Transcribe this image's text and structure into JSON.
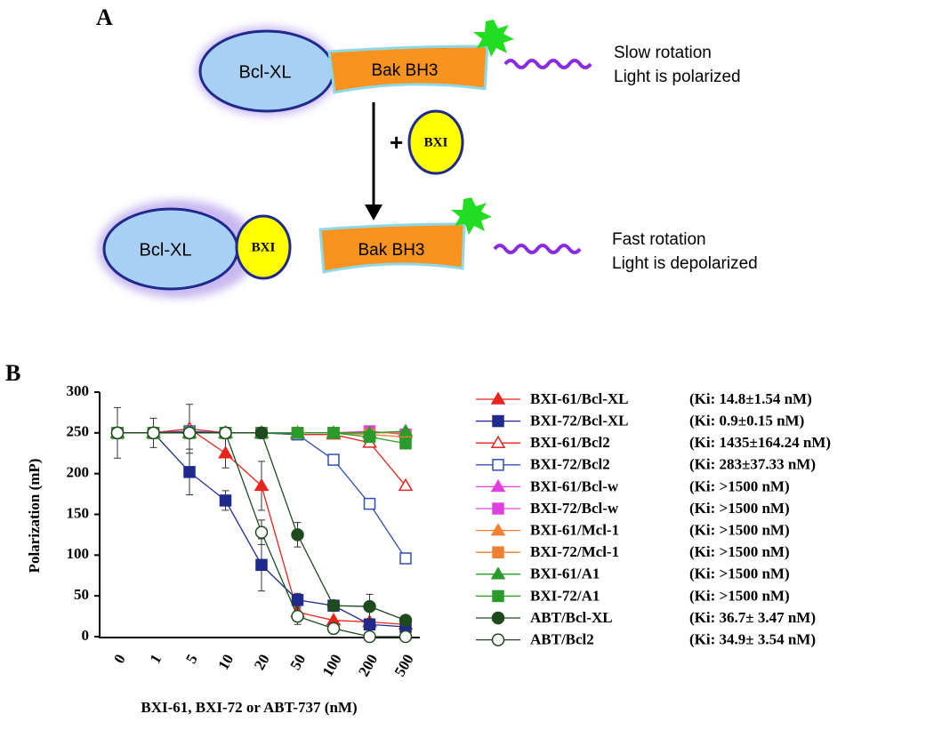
{
  "panel_a": {
    "label": "A",
    "top": {
      "protein": "Bcl-XL",
      "peptide": "Bak BH3",
      "rotation": "Slow rotation",
      "light": "Light is polarized"
    },
    "plus": "+",
    "inhibitor": "BXI",
    "bottom": {
      "protein": "Bcl-XL",
      "inhibitor": "BXI",
      "peptide": "Bak BH3",
      "rotation": "Fast rotation",
      "light": "Light is depolarized"
    }
  },
  "chart_data": {
    "type": "line",
    "panel_label": "B",
    "y_label": "Polarization (mP)",
    "x_label": "BXI-61, BXI-72 or ABT-737 (nM)",
    "categories": [
      "0",
      "1",
      "5",
      "10",
      "20",
      "50",
      "100",
      "200",
      "500"
    ],
    "ylim": [
      0,
      300
    ],
    "yticks": [
      0,
      50,
      100,
      150,
      200,
      250,
      300
    ],
    "series": [
      {
        "name": "BXI-61/Bcl-XL",
        "note": "(Ki: 14.8±1.54 nM)",
        "color": "#e8241c",
        "marker": "triangle",
        "filled": true,
        "values": [
          250,
          250,
          255,
          225,
          185,
          30,
          20,
          18,
          15
        ],
        "errors": [
          31,
          18,
          30,
          18,
          30,
          null,
          null,
          null,
          null
        ]
      },
      {
        "name": "BXI-72/Bcl-XL",
        "note": "(Ki: 0.9±0.15 nM)",
        "color": "#1f2a8c",
        "marker": "square",
        "filled": true,
        "values": [
          250,
          250,
          202,
          167,
          88,
          45,
          38,
          15,
          12
        ],
        "errors": [
          null,
          null,
          28,
          12,
          32,
          8,
          null,
          null,
          null
        ]
      },
      {
        "name": "BXI-61/Bcl2",
        "note": "(Ki: 1435±164.24 nM)",
        "color": "#e8241c",
        "marker": "triangle",
        "filled": false,
        "values": [
          250,
          250,
          255,
          250,
          250,
          248,
          248,
          238,
          185
        ]
      },
      {
        "name": "BXI-72/Bcl2",
        "note": "(Ki: 283±37.33 nM)",
        "color": "#3050b0",
        "marker": "square",
        "filled": false,
        "values": [
          250,
          250,
          252,
          250,
          250,
          248,
          217,
          163,
          96
        ]
      },
      {
        "name": "BXI-61/Bcl-w",
        "note": "(Ki: >1500 nM)",
        "color": "#e040e0",
        "marker": "triangle",
        "filled": true,
        "values": [
          250,
          250,
          250,
          250,
          250,
          250,
          250,
          250,
          250
        ]
      },
      {
        "name": "BXI-72/Bcl-w",
        "note": "(Ki: >1500 nM)",
        "color": "#e040e0",
        "marker": "square",
        "filled": true,
        "values": [
          250,
          250,
          250,
          250,
          250,
          250,
          250,
          252,
          248
        ]
      },
      {
        "name": "BXI-61/Mcl-1",
        "note": "(Ki: >1500 nM)",
        "color": "#f08030",
        "marker": "triangle",
        "filled": true,
        "values": [
          250,
          250,
          250,
          250,
          250,
          250,
          250,
          250,
          250
        ]
      },
      {
        "name": "BXI-72/Mcl-1",
        "note": "(Ki: >1500 nM)",
        "color": "#f08030",
        "marker": "square",
        "filled": true,
        "values": [
          250,
          250,
          250,
          250,
          250,
          250,
          250,
          248,
          245
        ]
      },
      {
        "name": "BXI-61/A1",
        "note": "(Ki: >1500 nM)",
        "color": "#2a9a2a",
        "marker": "triangle",
        "filled": true,
        "values": [
          250,
          250,
          250,
          250,
          250,
          250,
          250,
          250,
          252
        ]
      },
      {
        "name": "BXI-72/A1",
        "note": "(Ki: >1500 nM)",
        "color": "#2a9a2a",
        "marker": "square",
        "filled": true,
        "values": [
          250,
          250,
          250,
          250,
          250,
          250,
          250,
          245,
          237
        ]
      },
      {
        "name": "ABT/Bcl-XL",
        "note": "(Ki: 36.7± 3.47 nM)",
        "color": "#1e4a1e",
        "marker": "circle",
        "filled": true,
        "values": [
          250,
          250,
          250,
          250,
          250,
          125,
          38,
          37,
          20
        ],
        "errors": [
          null,
          null,
          null,
          null,
          null,
          15,
          null,
          15,
          null
        ]
      },
      {
        "name": "ABT/Bcl2",
        "note": "(Ki: 34.9± 3.54 nM)",
        "color": "#1e4a1e",
        "marker": "circle",
        "filled": false,
        "values": [
          250,
          250,
          250,
          250,
          128,
          25,
          10,
          0,
          0
        ],
        "errors": [
          null,
          null,
          null,
          null,
          15,
          10,
          null,
          null,
          null
        ]
      }
    ]
  }
}
